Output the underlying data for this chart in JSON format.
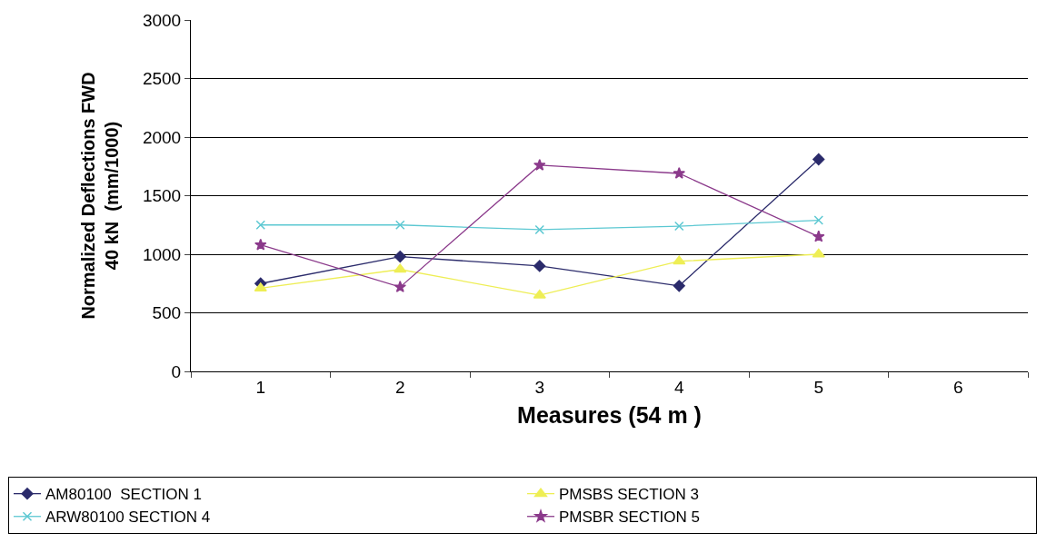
{
  "chart_data": {
    "type": "line",
    "xlabel": "Measures (54 m )",
    "ylabel": "Normalized Deflections FWD\n40 kN  (mm/1000)",
    "categories": [
      "1",
      "2",
      "3",
      "4",
      "5",
      "6"
    ],
    "ylim": [
      0,
      3000
    ],
    "yticks": [
      0,
      500,
      1000,
      1500,
      2000,
      2500,
      3000
    ],
    "grid": "y",
    "legend": "bottom",
    "line_style": "solid",
    "series": [
      {
        "name": "AM80100  SECTION 1",
        "color": "#2b2b6b",
        "marker": "diamond",
        "values": [
          750,
          980,
          900,
          730,
          1810,
          null
        ]
      },
      {
        "name": "PMSBS SECTION 3",
        "color": "#eeee55",
        "marker": "triangle",
        "values": [
          710,
          870,
          650,
          940,
          1000,
          null
        ]
      },
      {
        "name": "ARW80100 SECTION 4",
        "color": "#5cc8d2",
        "marker": "cross",
        "values": [
          1250,
          1250,
          1210,
          1240,
          1290,
          null
        ]
      },
      {
        "name": "PMSBR SECTION 5",
        "color": "#8b3a8b",
        "marker": "star",
        "values": [
          1080,
          720,
          1760,
          1690,
          1150,
          null
        ]
      }
    ]
  }
}
